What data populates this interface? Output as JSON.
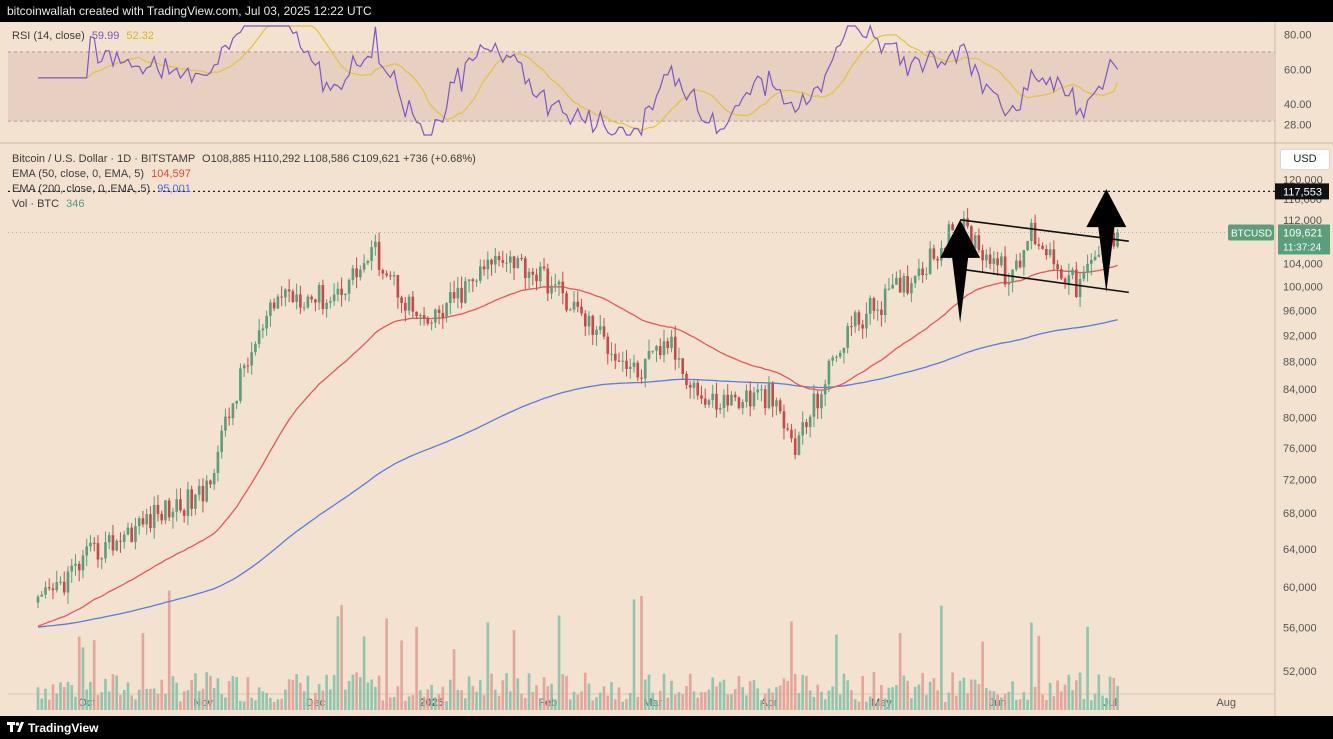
{
  "header": {
    "attribution": "bitcoinwallah created with TradingView.com, Jul 03, 2025 12:22 UTC"
  },
  "footer": {
    "logo_text": "TradingView"
  },
  "rsi_panel": {
    "label": "RSI (14, close)",
    "value": "59.99",
    "ma_value": "52.32",
    "ticks": [
      "80.00",
      "60.00",
      "40.00",
      "28.00"
    ]
  },
  "price_panel": {
    "legend": {
      "symbol": "Bitcoin / U.S. Dollar · 1D · BITSTAMP",
      "ohlc": "O108,885 H110,292 L108,586 C109,621 +736 (+0.68%)",
      "ema50_label": "EMA (50, close, 0, EMA, 5)",
      "ema50_value": "104,597",
      "ema200_label": "EMA (200, close, 0, EMA, 5)",
      "ema200_value": "95,001",
      "vol_label": "Vol · BTC",
      "vol_value": "346"
    },
    "currency": "USD",
    "target_label": "117,553",
    "ticker_label": "BTCUSD",
    "last_price": "109,621",
    "countdown": "11:37:24",
    "price_ticks": [
      "120,000",
      "116,000",
      "112,000",
      "108,000",
      "104,000",
      "100,000",
      "96,000",
      "92,000",
      "88,000",
      "84,000",
      "80,000",
      "76,000",
      "72,000",
      "68,000",
      "64,000",
      "60,000",
      "56,000",
      "52,000"
    ],
    "time_ticks": [
      "Oct",
      "Nov",
      "Dec",
      "2025",
      "Feb",
      "Mar",
      "Apr",
      "May",
      "Jun",
      "Jul",
      "Aug"
    ]
  },
  "colors": {
    "background": "#f2e2cf",
    "up": "#5a9e7c",
    "down": "#c9494a",
    "ema50": "#e8575a",
    "ema200": "#5a7be0",
    "rsi": "#7e57c2",
    "rsi_ma": "#e2c340"
  },
  "chart_data": {
    "type": "candlestick",
    "symbol": "BTCUSD",
    "ylim": [
      50000,
      124000
    ],
    "key_points_x": [
      "2024-09-18",
      "2024-10-01",
      "2024-10-20",
      "2024-11-01",
      "2024-11-12",
      "2024-11-22",
      "2024-12-05",
      "2024-12-17",
      "2024-12-30",
      "2025-01-20",
      "2025-02-01",
      "2025-02-25",
      "2025-03-05",
      "2025-03-15",
      "2025-04-01",
      "2025-04-08",
      "2025-04-22",
      "2025-05-08",
      "2025-05-22",
      "2025-06-05",
      "2025-06-10",
      "2025-06-22",
      "2025-07-03"
    ],
    "key_points_close": [
      58000,
      63000,
      68000,
      70000,
      87000,
      99000,
      98000,
      106000,
      93000,
      106000,
      101000,
      86000,
      91000,
      82000,
      83000,
      76000,
      93000,
      101000,
      111000,
      101000,
      110000,
      100000,
      109621
    ],
    "ema50_end": 104597,
    "ema200_end": 95001,
    "target_level": 117553,
    "channel_upper": {
      "from": [
        "2025-05-22",
        112000
      ],
      "to": [
        "2025-07-06",
        108000
      ]
    },
    "channel_lower": {
      "from": [
        "2025-05-22",
        103000
      ],
      "to": [
        "2025-07-06",
        99000
      ]
    },
    "arrows_up": [
      {
        "from": [
          "2025-05-22",
          94000
        ],
        "to": [
          "2025-05-22",
          112000
        ]
      },
      {
        "from": [
          "2025-06-30",
          99000
        ],
        "to": [
          "2025-06-30",
          118000
        ]
      }
    ],
    "rsi_last": 59.99,
    "rsi_ma_last": 52.32
  }
}
